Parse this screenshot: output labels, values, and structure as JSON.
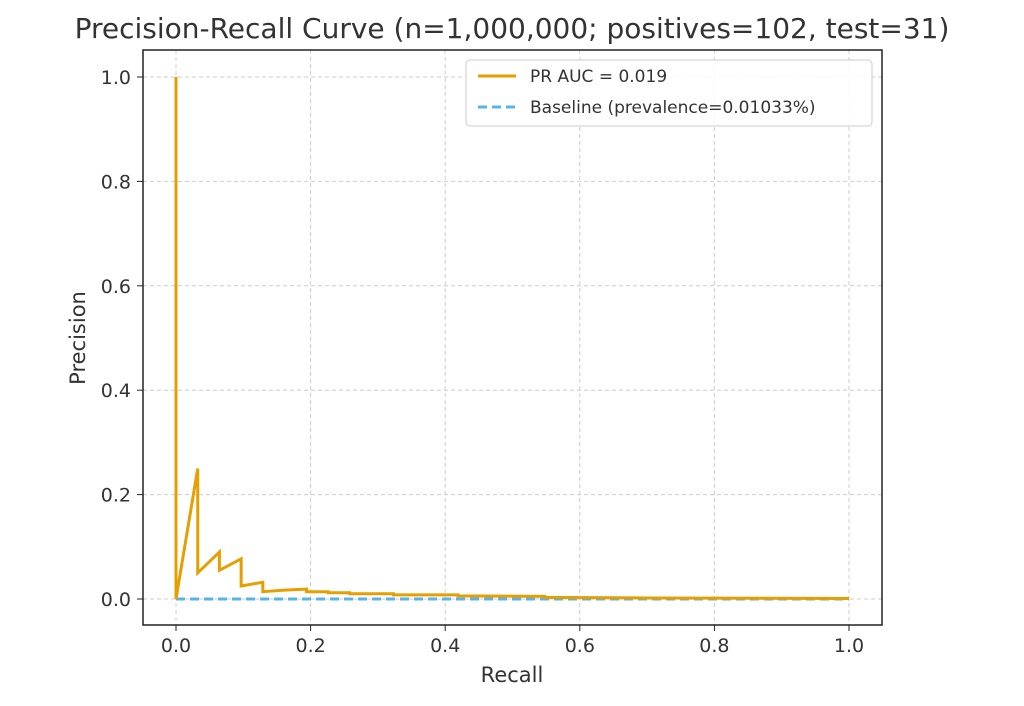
{
  "chart_data": {
    "type": "line",
    "title": "Precision-Recall Curve (n=1,000,000; positives=102, test=31)",
    "xlabel": "Recall",
    "ylabel": "Precision",
    "xlim": [
      -0.05,
      1.05
    ],
    "ylim": [
      -0.05,
      1.05
    ],
    "xticks": [
      "0.0",
      "0.2",
      "0.4",
      "0.6",
      "0.8",
      "1.0"
    ],
    "yticks": [
      "0.0",
      "0.2",
      "0.4",
      "0.6",
      "0.8",
      "1.0"
    ],
    "grid": true,
    "legend_position": "top-right",
    "series": [
      {
        "name": "PR AUC = 0.019",
        "color": "#E69F00",
        "style": "solid",
        "x": [
          0,
          0,
          0.0323,
          0.0323,
          0.0645,
          0.0645,
          0.0968,
          0.0968,
          0.129,
          0.129,
          0.161,
          0.194,
          0.194,
          0.226,
          0.226,
          0.258,
          0.258,
          0.323,
          0.323,
          0.419,
          0.419,
          0.548,
          0.548,
          0.7,
          1.0
        ],
        "y": [
          1.0,
          0.0,
          0.25,
          0.05,
          0.09,
          0.055,
          0.077,
          0.025,
          0.032,
          0.014,
          0.017,
          0.019,
          0.014,
          0.014,
          0.012,
          0.012,
          0.01,
          0.01,
          0.008,
          0.008,
          0.006,
          0.005,
          0.003,
          0.002,
          0.001
        ]
      },
      {
        "name": "Baseline (prevalence=0.01033%)",
        "color": "#56B4E9",
        "style": "dashed",
        "x": [
          0,
          1
        ],
        "y": [
          0.0001033,
          0.0001033
        ]
      }
    ]
  }
}
